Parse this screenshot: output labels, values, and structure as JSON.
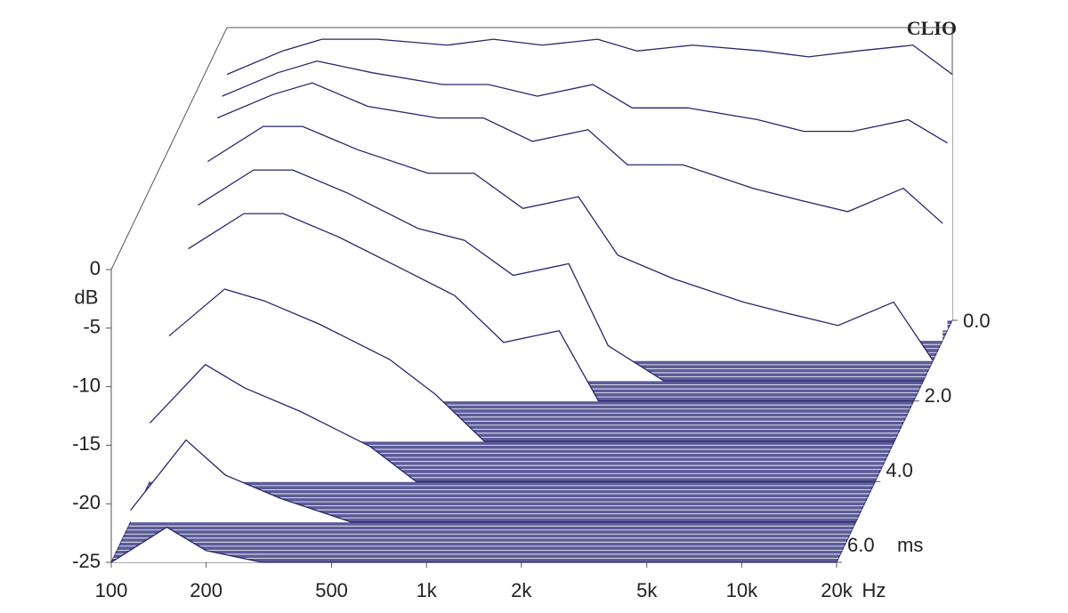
{
  "chart_data": {
    "type": "waterfall",
    "brand": "CLIO",
    "ylabel": "dB",
    "xlabel": "Hz",
    "zlabel": "ms",
    "color": "#26266f",
    "floor_color": "#5c5c98",
    "xscale": "log",
    "xlim": [
      100,
      20000
    ],
    "xticks": [
      100,
      200,
      500,
      {
        "value": 1000,
        "label": "1k"
      },
      {
        "value": 2000,
        "label": "2k"
      },
      {
        "value": 5000,
        "label": "5k"
      },
      {
        "value": 10000,
        "label": "10k"
      },
      {
        "value": 20000,
        "label": "20k"
      }
    ],
    "ylim": [
      -25,
      0
    ],
    "yticks": [
      0,
      -5,
      -10,
      -15,
      -20,
      -25
    ],
    "zlim": [
      0,
      6
    ],
    "zticks": [
      {
        "value": 0,
        "label": "0.0"
      },
      {
        "value": 2,
        "label": "2.0"
      },
      {
        "value": 4,
        "label": "4.0"
      },
      {
        "value": 6,
        "label": "6.0"
      }
    ],
    "x": [
      100,
      150,
      200,
      300,
      500,
      700,
      1000,
      1500,
      2000,
      3000,
      5000,
      7000,
      10000,
      15000,
      20000
    ],
    "series": [
      {
        "time": 0,
        "values": [
          -4,
          -2,
          -1,
          -1,
          -1.5,
          -1,
          -1.5,
          -1,
          -2,
          -1.5,
          -2,
          -2.5,
          -2,
          -1.5,
          -4
        ]
      },
      {
        "time": 0.25,
        "values": [
          -5,
          -3,
          -2,
          -3,
          -4,
          -4,
          -5,
          -4,
          -6,
          -6,
          -7,
          -8,
          -8,
          -7,
          -9
        ]
      },
      {
        "time": 0.5,
        "values": [
          -6,
          -4,
          -3,
          -5,
          -6,
          -6,
          -8,
          -7,
          -10,
          -10,
          -12,
          -13,
          -14,
          -12,
          -15
        ]
      },
      {
        "time": 1.0,
        "values": [
          -8,
          -5,
          -5,
          -7,
          -9,
          -9,
          -12,
          -11,
          -16,
          -18,
          -20,
          -21,
          -22,
          -20,
          -25
        ]
      },
      {
        "time": 1.5,
        "values": [
          -10,
          -7,
          -7,
          -9,
          -12,
          -13,
          -16,
          -15,
          -22,
          -25,
          -25,
          -25,
          -25,
          -25,
          -25
        ]
      },
      {
        "time": 2.0,
        "values": [
          -12,
          -9,
          -9,
          -11,
          -14,
          -16,
          -20,
          -19,
          -25,
          -25,
          -25,
          -25,
          -25,
          -25,
          -25
        ]
      },
      {
        "time": 3.0,
        "values": [
          -16,
          -12,
          -13,
          -15,
          -18,
          -21,
          -25,
          -25,
          -25,
          -25,
          -25,
          -25,
          -25,
          -25,
          -25
        ]
      },
      {
        "time": 4.0,
        "values": [
          -20,
          -15,
          -17,
          -19,
          -22,
          -25,
          -25,
          -25,
          -25,
          -25,
          -25,
          -25,
          -25,
          -25,
          -25
        ]
      },
      {
        "time": 5.0,
        "values": [
          -24,
          -18,
          -21,
          -23,
          -25,
          -25,
          -25,
          -25,
          -25,
          -25,
          -25,
          -25,
          -25,
          -25,
          -25
        ]
      },
      {
        "time": 6.0,
        "values": [
          -25,
          -22,
          -24,
          -25,
          -25,
          -25,
          -25,
          -25,
          -25,
          -25,
          -25,
          -25,
          -25,
          -25,
          -25
        ]
      }
    ]
  }
}
